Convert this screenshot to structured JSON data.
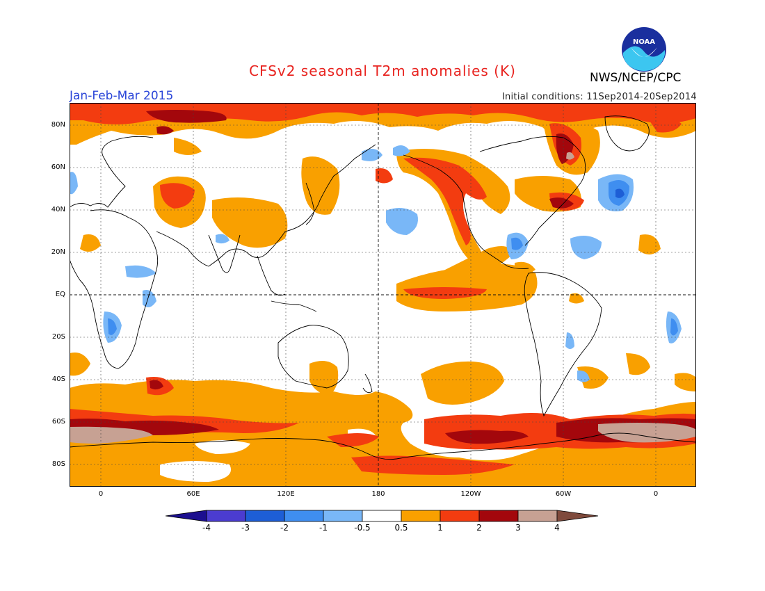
{
  "header": {
    "title": "CFSv2 seasonal T2m anomalies (K)",
    "season": "Jan-Feb-Mar 2015",
    "initial_conditions": "Initial conditions: 11Sep2014-20Sep2014",
    "agency": "NWS/NCEP/CPC",
    "logo_text": "NOAA"
  },
  "map": {
    "projection": "cylindrical-equidistant",
    "central_longitude": "180",
    "lat_ticks": [
      "80N",
      "60N",
      "40N",
      "20N",
      "EQ",
      "20S",
      "40S",
      "60S",
      "80S"
    ],
    "lon_ticks": [
      "0",
      "60E",
      "120E",
      "180",
      "120W",
      "60W",
      "0"
    ],
    "grid": "dotted",
    "colors": {
      "lt_neg4": "#1c0f8f",
      "neg4_neg3": "#4b3cd0",
      "neg3_neg2": "#1d5ed6",
      "neg2_neg1": "#3f8ef0",
      "neg1_neg05": "#79b7f7",
      "neutral": "#ffffff",
      "p05_1": "#f9a000",
      "p1_2": "#f33c10",
      "p2_3": "#a3070c",
      "p3_4": "#c7a193",
      "gt4": "#7f4a3c"
    }
  },
  "colorbar": {
    "labels": [
      "-4",
      "-3",
      "-2",
      "-1",
      "-0.5",
      "0.5",
      "1",
      "2",
      "3",
      "4"
    ],
    "colors": [
      "#1c0f8f",
      "#4b3cd0",
      "#1d5ed6",
      "#3f8ef0",
      "#79b7f7",
      "#ffffff",
      "#f9a000",
      "#f33c10",
      "#a3070c",
      "#c7a193",
      "#7f4a3c"
    ]
  }
}
